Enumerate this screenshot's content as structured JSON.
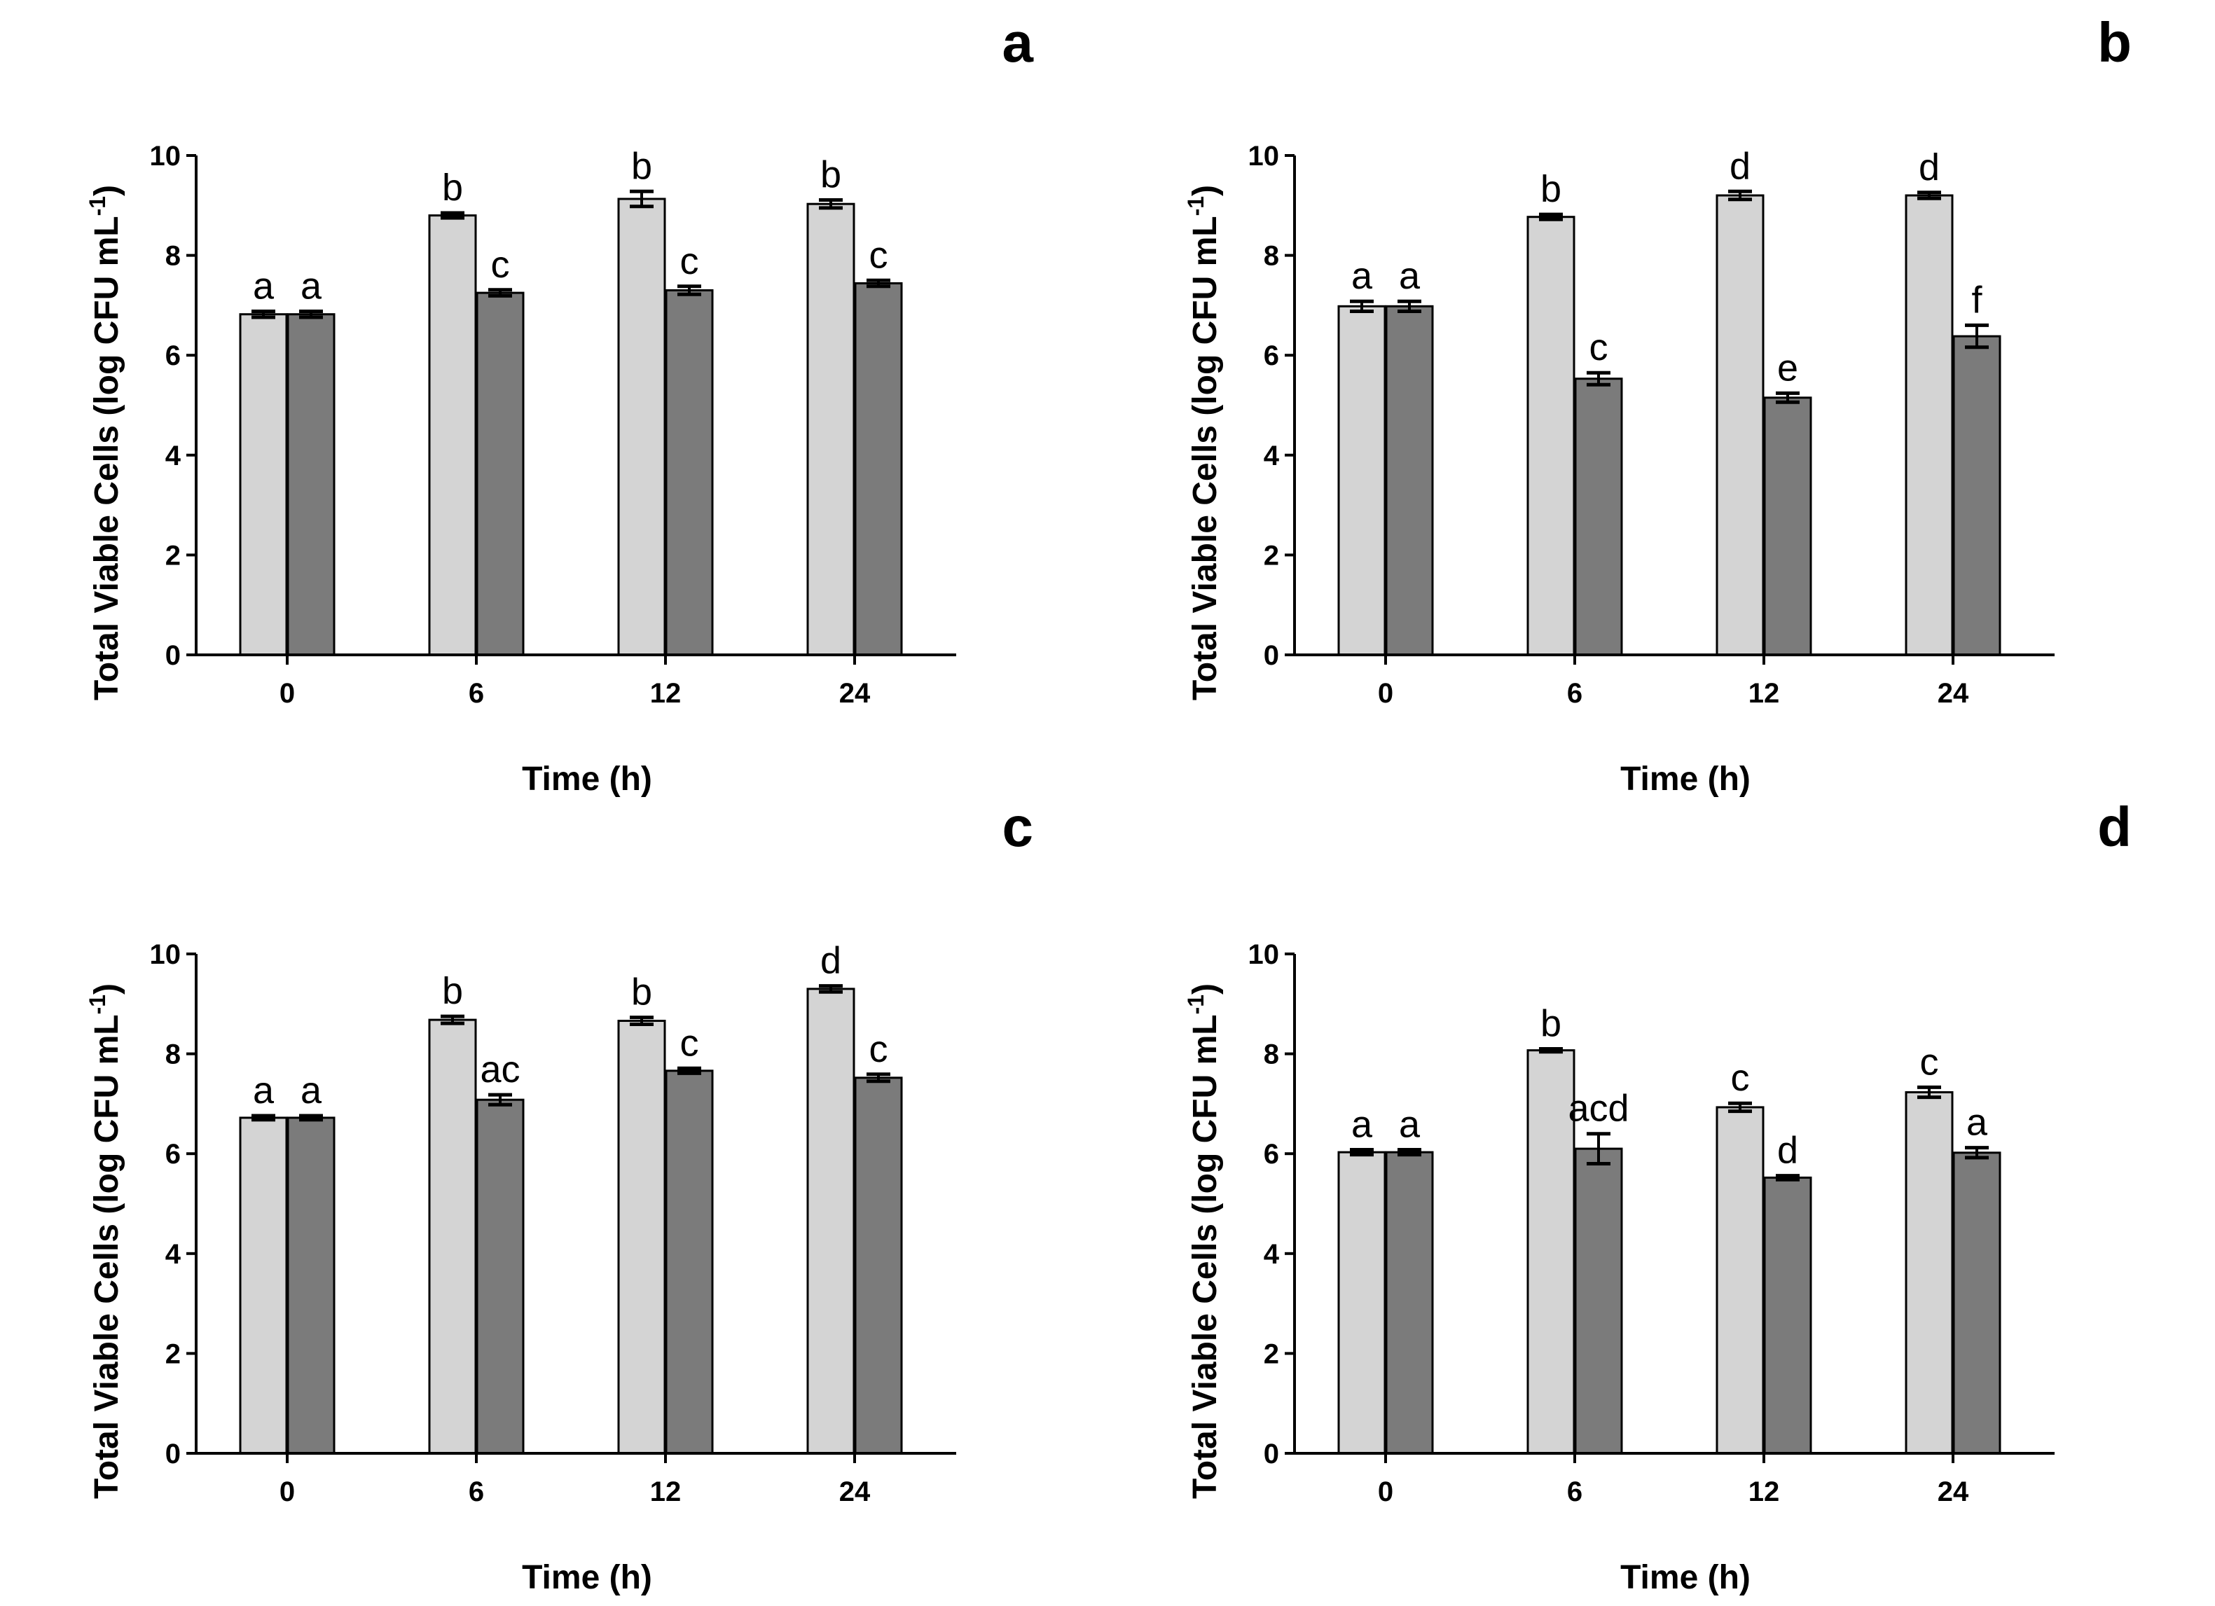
{
  "figure": {
    "colors": {
      "series_1": "#d4d4d4",
      "series_2": "#7b7b7b",
      "axis": "#000000",
      "error_bar": "#000000"
    }
  },
  "chart_data": [
    {
      "panel": "a",
      "type": "bar",
      "categories": [
        "0",
        "6",
        "12",
        "24"
      ],
      "xlabel": "Time (h)",
      "ylabel": "Total  Viable  Cells (log CFU mL",
      "ylabel_sup": "-1",
      "ylabel_close": ")",
      "ylim": [
        0,
        10
      ],
      "yticks": [
        0,
        2,
        4,
        6,
        8,
        10
      ],
      "series": [
        {
          "values": [
            6.82,
            8.8,
            9.13,
            9.03
          ],
          "errors": [
            0.06,
            0.05,
            0.15,
            0.08
          ],
          "letters": [
            "a",
            "b",
            "b",
            "b"
          ]
        },
        {
          "values": [
            6.82,
            7.25,
            7.3,
            7.44
          ],
          "errors": [
            0.06,
            0.06,
            0.08,
            0.06
          ],
          "letters": [
            "a",
            "c",
            "c",
            "c"
          ]
        }
      ]
    },
    {
      "panel": "b",
      "type": "bar",
      "categories": [
        "0",
        "6",
        "12",
        "24"
      ],
      "xlabel": "Time (h)",
      "ylabel": "Total  Viable  Cells (log CFU mL",
      "ylabel_sup": "-1",
      "ylabel_close": ")",
      "ylim": [
        0,
        10
      ],
      "yticks": [
        0,
        2,
        4,
        6,
        8,
        10
      ],
      "series": [
        {
          "values": [
            6.98,
            8.77,
            9.2,
            9.2
          ],
          "errors": [
            0.1,
            0.05,
            0.08,
            0.06
          ],
          "letters": [
            "a",
            "b",
            "d",
            "d"
          ]
        },
        {
          "values": [
            6.98,
            5.53,
            5.15,
            6.38
          ],
          "errors": [
            0.1,
            0.12,
            0.09,
            0.22
          ],
          "letters": [
            "a",
            "c",
            "e",
            "f"
          ]
        }
      ]
    },
    {
      "panel": "c",
      "type": "bar",
      "categories": [
        "0",
        "6",
        "12",
        "24"
      ],
      "xlabel": "Time (h)",
      "ylabel": "Total  Viable  Cells (log CFU mL",
      "ylabel_sup": "-1",
      "ylabel_close": ")",
      "ylim": [
        0,
        10
      ],
      "yticks": [
        0,
        2,
        4,
        6,
        8,
        10
      ],
      "series": [
        {
          "values": [
            6.72,
            8.68,
            8.66,
            9.3
          ],
          "errors": [
            0.04,
            0.07,
            0.07,
            0.06
          ],
          "letters": [
            "a",
            "b",
            "b",
            "d"
          ]
        },
        {
          "values": [
            6.72,
            7.08,
            7.66,
            7.52
          ],
          "errors": [
            0.04,
            0.1,
            0.05,
            0.07
          ],
          "letters": [
            "a",
            "ac",
            "c",
            "c"
          ]
        }
      ]
    },
    {
      "panel": "d",
      "type": "bar",
      "categories": [
        "0",
        "6",
        "12",
        "24"
      ],
      "xlabel": "Time (h)",
      "ylabel": "Total  Viable  Cells (log CFU mL",
      "ylabel_sup": "-1",
      "ylabel_close": ")",
      "ylim": [
        0,
        10
      ],
      "yticks": [
        0,
        2,
        4,
        6,
        8,
        10
      ],
      "series": [
        {
          "values": [
            6.03,
            8.07,
            6.93,
            7.23
          ],
          "errors": [
            0.05,
            0.03,
            0.08,
            0.1
          ],
          "letters": [
            "a",
            "b",
            "c",
            "c"
          ]
        },
        {
          "values": [
            6.03,
            6.1,
            5.52,
            6.02
          ],
          "errors": [
            0.05,
            0.3,
            0.04,
            0.1
          ],
          "letters": [
            "a",
            "acd",
            "d",
            "a"
          ]
        }
      ]
    }
  ]
}
